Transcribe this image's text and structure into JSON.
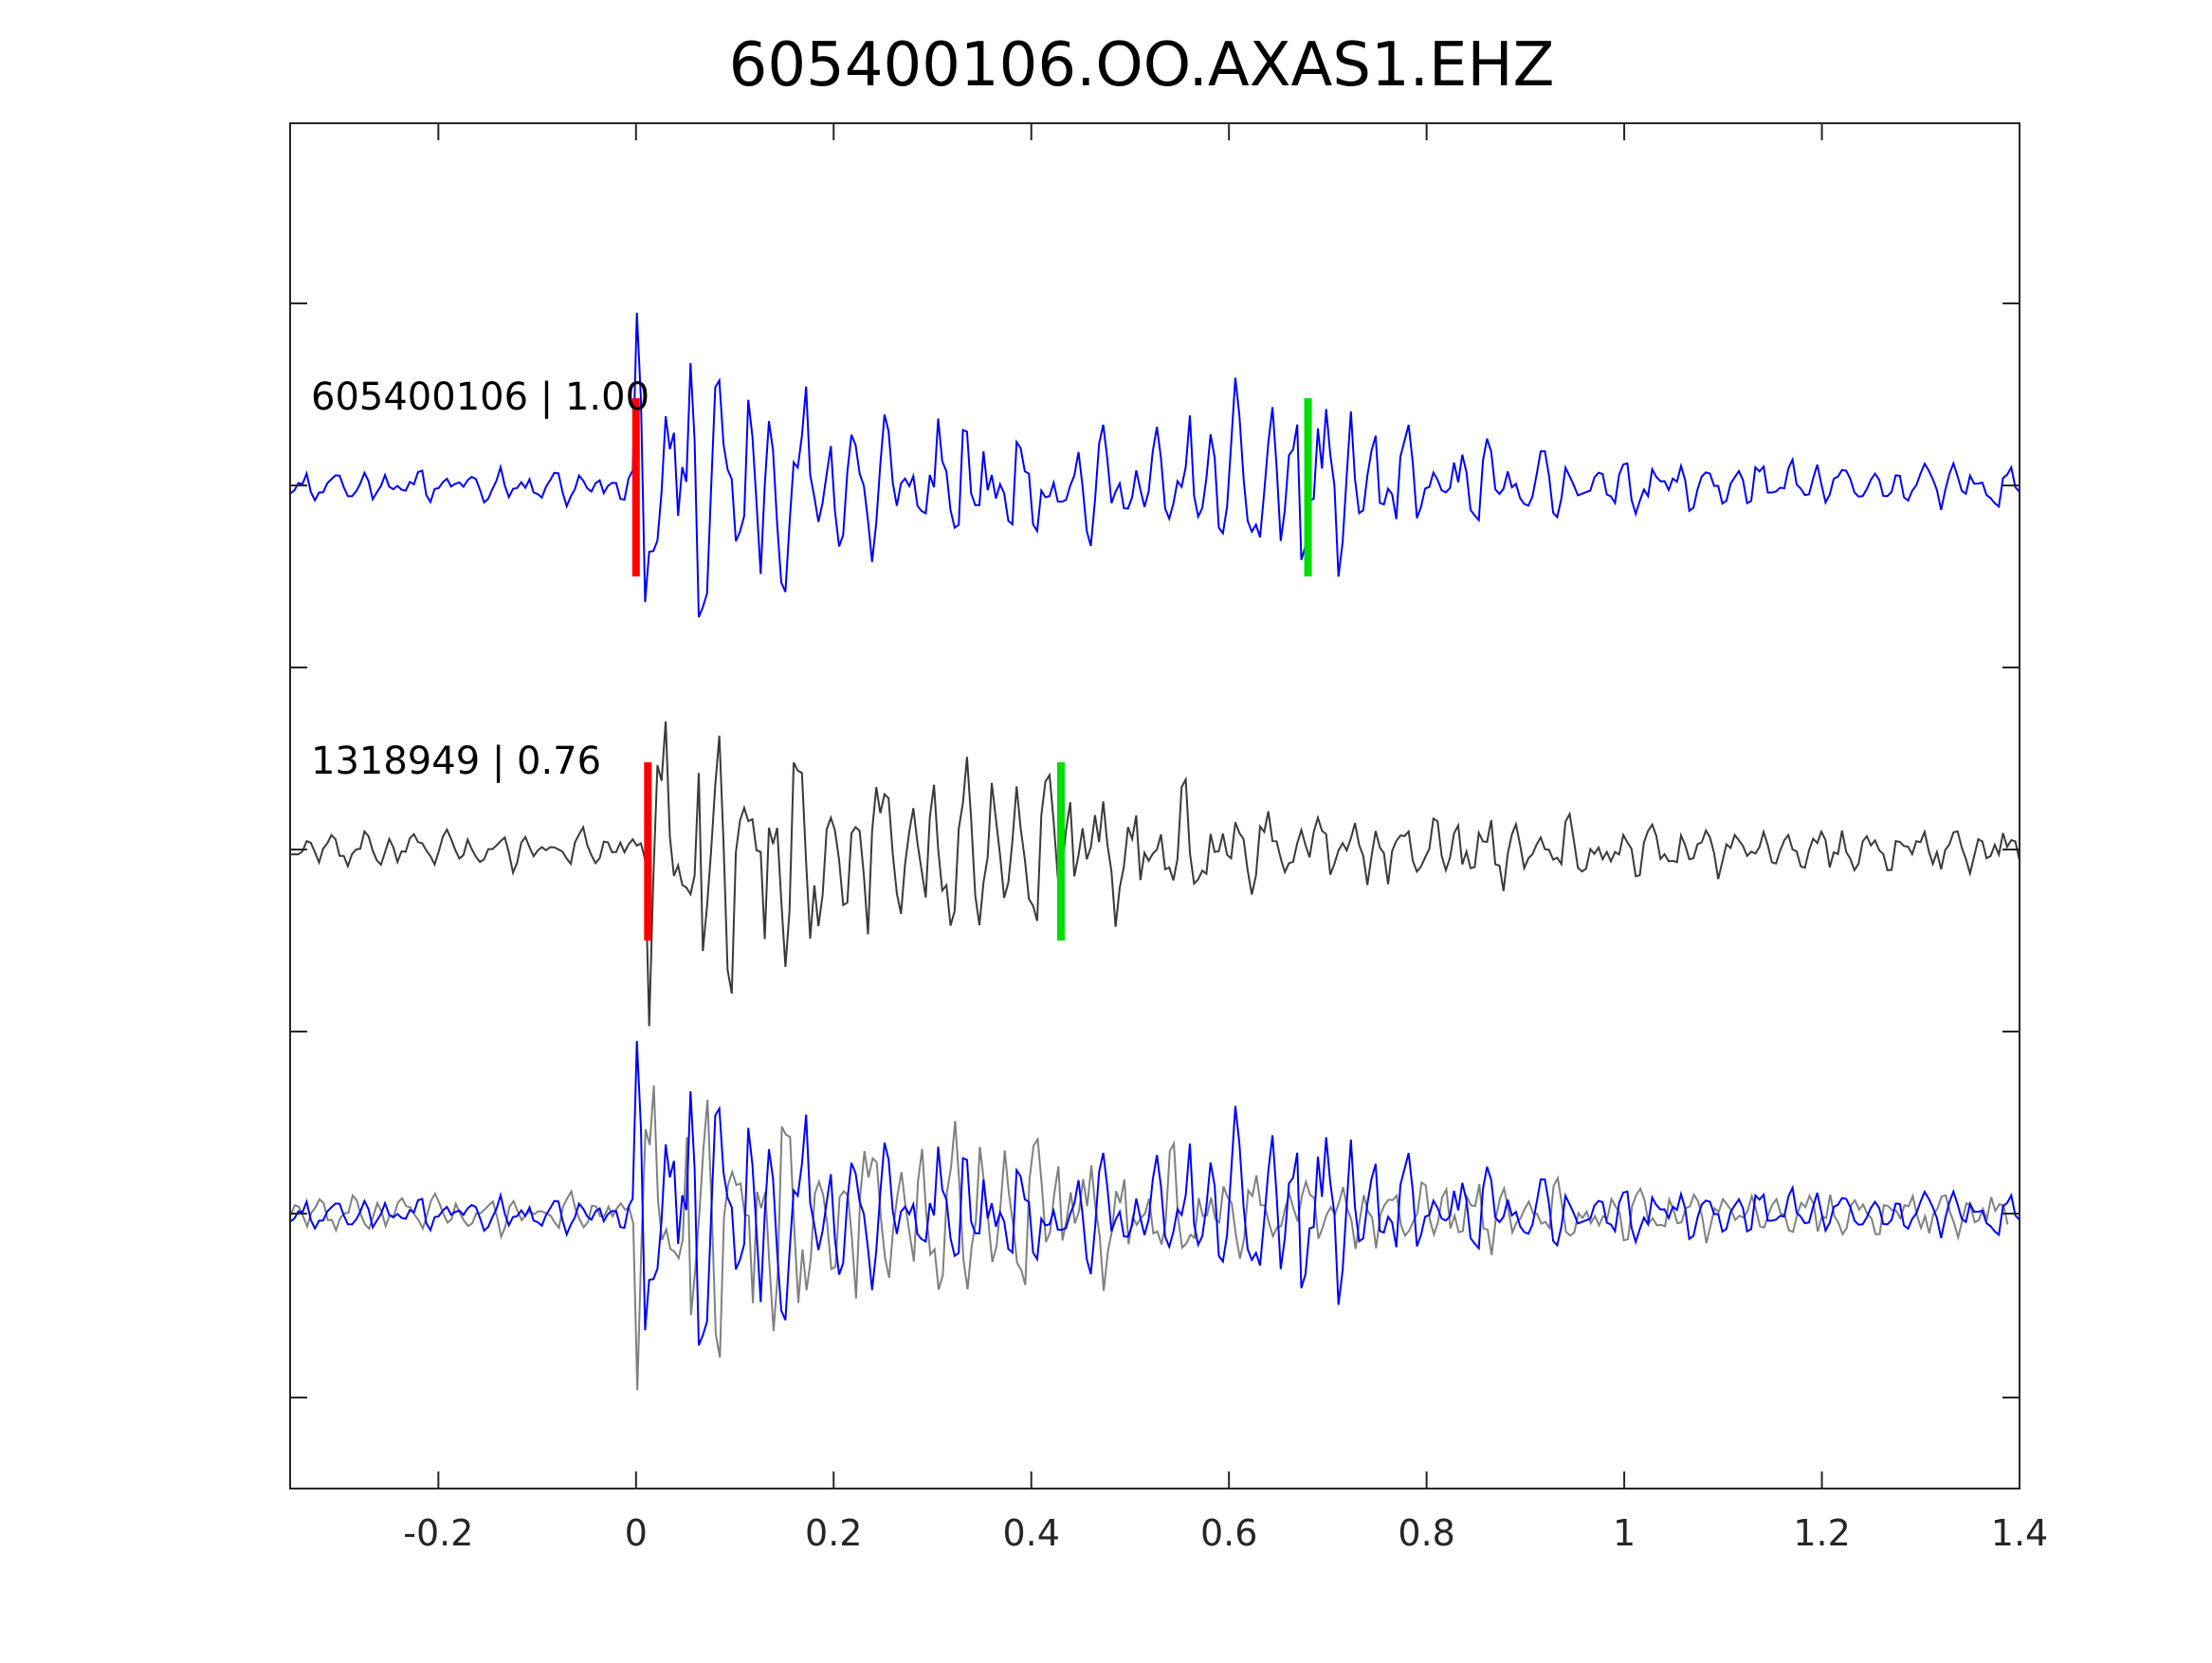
{
  "chart_data": {
    "type": "line",
    "title": "605400106.OO.AXAS1.EHZ",
    "xlabel": "",
    "ylabel": "",
    "xlim": [
      -0.35,
      1.4
    ],
    "xticks": [
      -0.2,
      0,
      0.2,
      0.4,
      0.6,
      0.8,
      1,
      1.2,
      1.4
    ],
    "xtick_labels": [
      "-0.2",
      "0",
      "0.2",
      "0.4",
      "0.6",
      "0.8",
      "1",
      "1.2",
      "1.4"
    ],
    "grid": false,
    "legend": "none",
    "colors": {
      "template": "#0000ff",
      "match": "#3a3a3a",
      "overlay_match": "#808080",
      "p_pick": "#ff0000",
      "s_pick": "#00dd00",
      "axes": "#262626"
    },
    "traces": [
      {
        "label": "605400106 | 1.00",
        "role": "template",
        "p_pick": 0.0,
        "s_pick": 0.68,
        "seed": 11
      },
      {
        "label": "1318949 | 0.76",
        "role": "match",
        "p_pick": 0.012,
        "s_pick": 0.43,
        "seed": 47
      }
    ],
    "overlay": {
      "role": "template-over-match"
    }
  }
}
